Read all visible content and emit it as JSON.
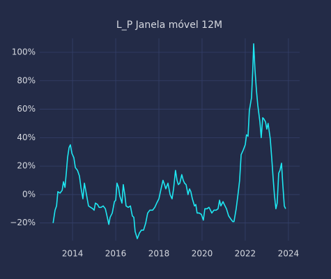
{
  "chart_data": {
    "type": "line",
    "title": "L_P Janela móvel 12M",
    "x": [
      2013.1,
      2013.19,
      2013.26,
      2013.32,
      2013.42,
      2013.52,
      2013.58,
      2013.65,
      2013.71,
      2013.77,
      2013.84,
      2013.9,
      2013.97,
      2014.06,
      2014.13,
      2014.23,
      2014.32,
      2014.39,
      2014.48,
      2014.55,
      2014.61,
      2014.68,
      2014.74,
      2014.84,
      2014.94,
      2015.0,
      2015.06,
      2015.16,
      2015.23,
      2015.32,
      2015.42,
      2015.52,
      2015.61,
      2015.68,
      2015.74,
      2015.84,
      2015.94,
      2016.0,
      2016.06,
      2016.13,
      2016.19,
      2016.29,
      2016.35,
      2016.42,
      2016.48,
      2016.58,
      2016.68,
      2016.77,
      2016.84,
      2016.9,
      2017.0,
      2017.1,
      2017.19,
      2017.29,
      2017.39,
      2017.48,
      2017.58,
      2017.71,
      2017.81,
      2017.9,
      2018.0,
      2018.1,
      2018.19,
      2018.26,
      2018.32,
      2018.42,
      2018.52,
      2018.61,
      2018.68,
      2018.77,
      2018.84,
      2018.9,
      2018.97,
      2019.06,
      2019.13,
      2019.19,
      2019.26,
      2019.35,
      2019.42,
      2019.48,
      2019.55,
      2019.65,
      2019.71,
      2019.77,
      2019.87,
      2019.97,
      2020.06,
      2020.13,
      2020.23,
      2020.32,
      2020.39,
      2020.45,
      2020.55,
      2020.65,
      2020.74,
      2020.81,
      2020.87,
      2020.97,
      2021.03,
      2021.13,
      2021.23,
      2021.32,
      2021.42,
      2021.48,
      2021.58,
      2021.68,
      2021.74,
      2021.81,
      2021.9,
      2022.0,
      2022.06,
      2022.13,
      2022.19,
      2022.29,
      2022.35,
      2022.39,
      2022.45,
      2022.52,
      2022.58,
      2022.68,
      2022.74,
      2022.81,
      2022.87,
      2022.94,
      2023.0,
      2023.06,
      2023.16,
      2023.23,
      2023.29,
      2023.35,
      2023.42,
      2023.48,
      2023.55,
      2023.61,
      2023.68,
      2023.74,
      2023.81,
      2023.87
    ],
    "series": [
      {
        "name": "L_P",
        "color": "#1ee8f2",
        "values": [
          -20,
          -11,
          -8,
          2,
          1,
          3,
          9,
          5,
          15,
          26,
          33,
          35,
          29,
          26,
          19,
          17,
          13,
          5,
          -3,
          8,
          3,
          -3,
          -8,
          -9,
          -10,
          -11,
          -6,
          -7,
          -9,
          -9,
          -8,
          -10,
          -16,
          -21,
          -16,
          -13,
          -5,
          -4,
          8,
          5,
          -1,
          -6,
          7,
          0,
          -8,
          -9,
          -8,
          -15,
          -16,
          -26,
          -31,
          -27,
          -25,
          -25,
          -20,
          -13,
          -11,
          -11,
          -9,
          -6,
          -3,
          4,
          10,
          7,
          4,
          8,
          0,
          -3,
          4,
          17,
          10,
          7,
          8,
          14,
          10,
          8,
          7,
          0,
          4,
          2,
          -3,
          -8,
          -7,
          -13,
          -13,
          -14,
          -18,
          -10,
          -10,
          -9,
          -11,
          -13,
          -11,
          -11,
          -10,
          -4,
          -8,
          -5,
          -7,
          -10,
          -15,
          -17,
          -19,
          -19,
          -10,
          2,
          10,
          28,
          31,
          35,
          42,
          41,
          59,
          68,
          88,
          106,
          88,
          73,
          63,
          51,
          40,
          54,
          53,
          51,
          46,
          50,
          39,
          25,
          12,
          0,
          -10,
          -6,
          15,
          17,
          22,
          7,
          -8,
          -10
        ]
      }
    ],
    "xlim": [
      2012.48,
      2024.52
    ],
    "xticks": [
      2014,
      2016,
      2018,
      2020,
      2022,
      2024
    ],
    "ylim": [
      -32.4,
      109.8
    ],
    "yticks": [
      {
        "value": -20,
        "label": "−20%"
      },
      {
        "value": 0,
        "label": "0%"
      },
      {
        "value": 20,
        "label": "20%"
      },
      {
        "value": 40,
        "label": "40%"
      },
      {
        "value": 60,
        "label": "60%"
      },
      {
        "value": 80,
        "label": "80%"
      },
      {
        "value": 100,
        "label": "100%"
      }
    ],
    "grid": true
  }
}
